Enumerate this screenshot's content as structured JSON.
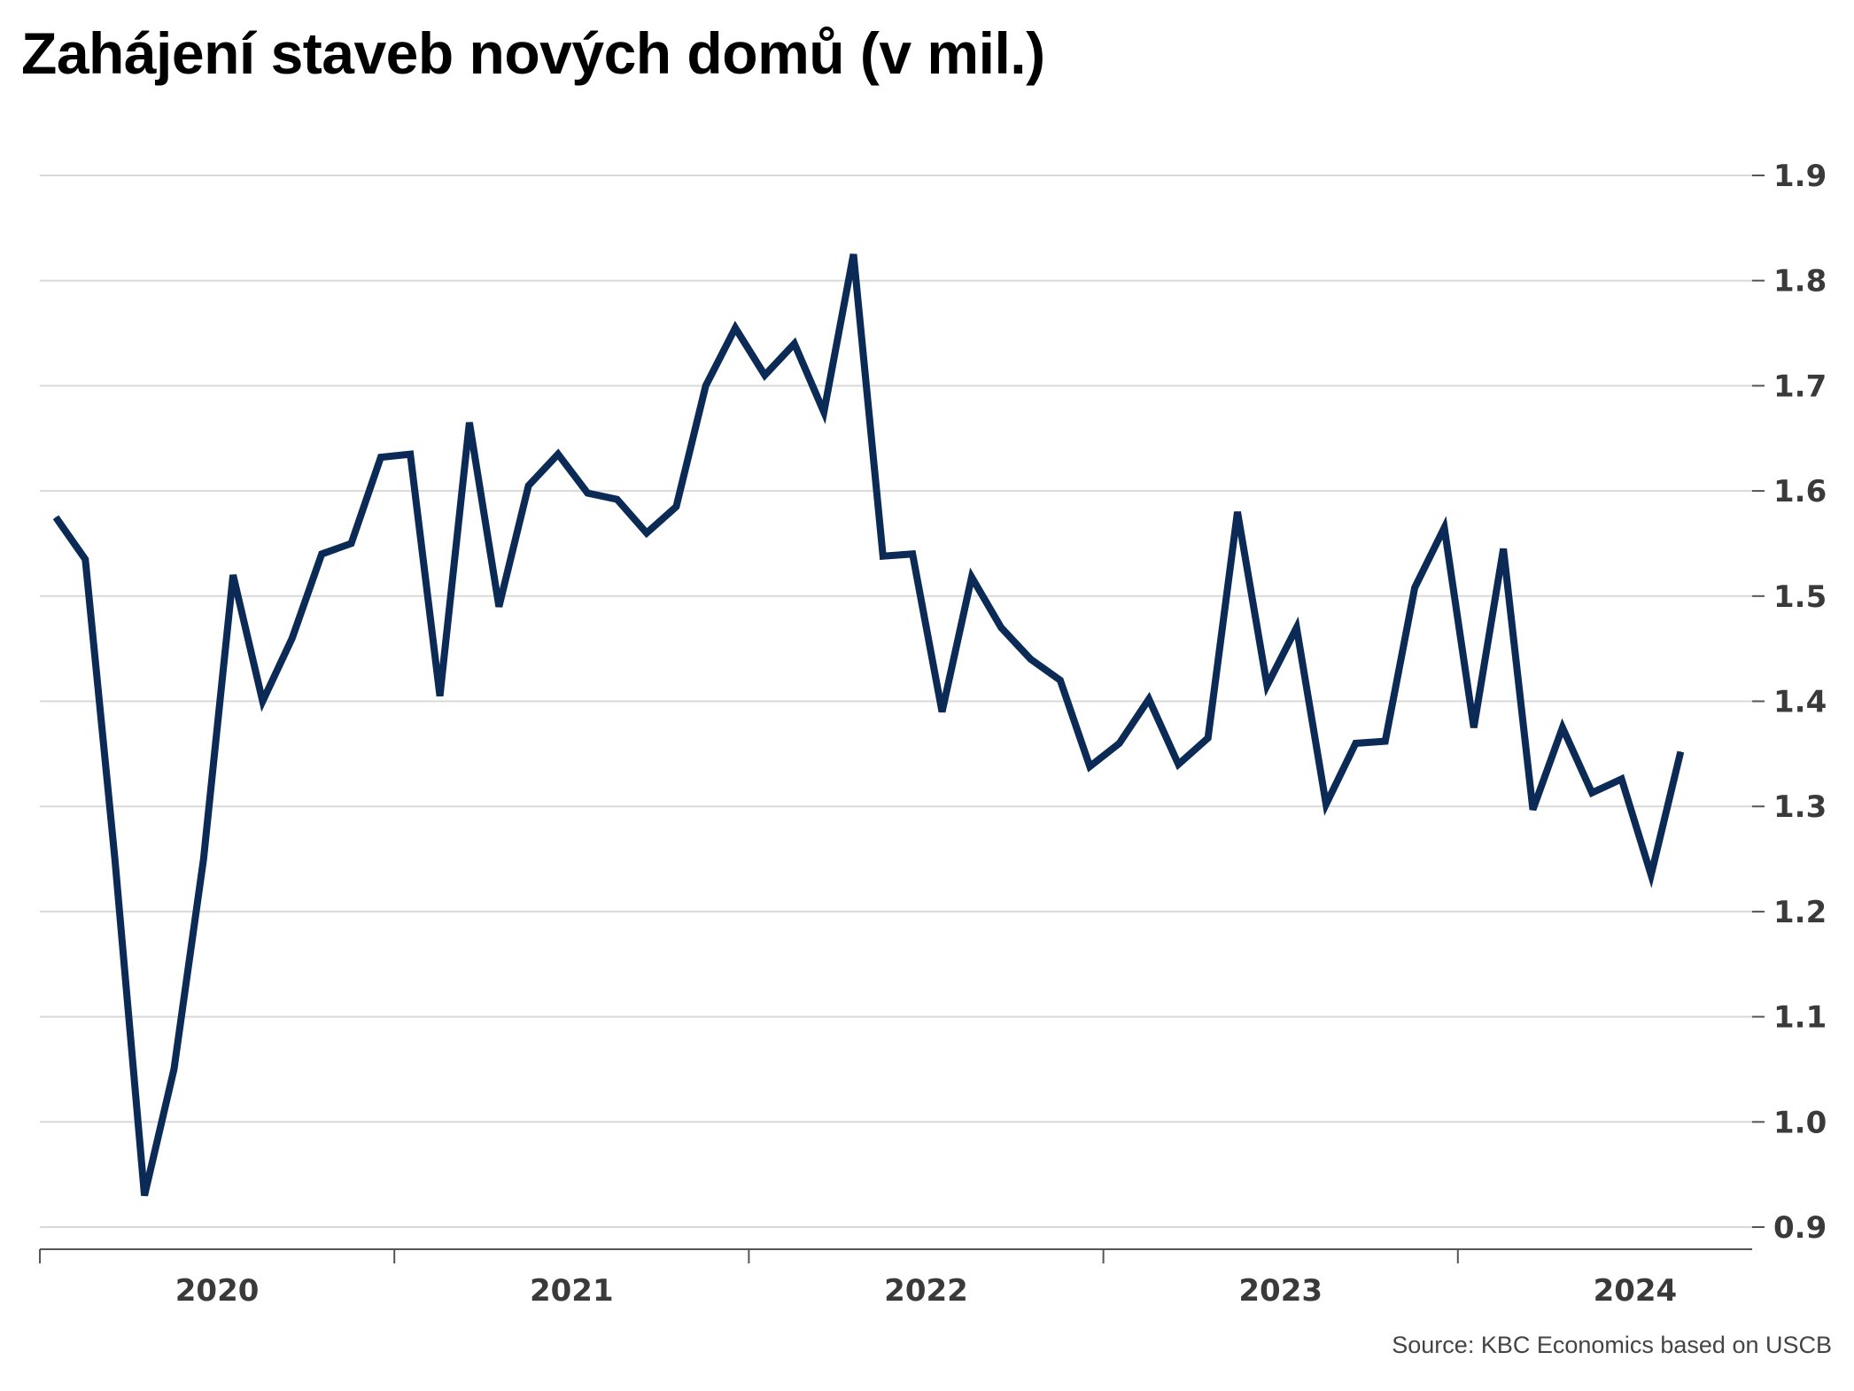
{
  "title": "Zahájení staveb nových domů (v mil.)",
  "source": "Source: KBC Economics based on USCB",
  "colors": {
    "line": "#0b2a55",
    "grid": "#d9d9d9",
    "axis": "#555555",
    "text": "#3a3a3a"
  },
  "chart_data": {
    "type": "line",
    "title": "Zahájení staveb nových domů (v mil.)",
    "ylim": [
      0.9,
      1.9
    ],
    "yticks": [
      "0.9",
      "1.0",
      "1.1",
      "1.2",
      "1.3",
      "1.4",
      "1.5",
      "1.6",
      "1.7",
      "1.8",
      "1.9"
    ],
    "xlabels": [
      "2020",
      "2021",
      "2022",
      "2023",
      "2024"
    ],
    "grid": true,
    "y_axis_position": "right",
    "series": [
      {
        "start": "2020-01",
        "frequency": "monthly",
        "values": [
          1.575,
          1.535,
          1.25,
          0.93,
          1.05,
          1.25,
          1.52,
          1.4,
          1.46,
          1.54,
          1.55,
          1.632,
          1.635,
          1.405,
          1.665,
          1.49,
          1.605,
          1.635,
          1.598,
          1.592,
          1.56,
          1.585,
          1.7,
          1.755,
          1.71,
          1.74,
          1.675,
          1.825,
          1.538,
          1.54,
          1.39,
          1.518,
          1.47,
          1.44,
          1.42,
          1.338,
          1.36,
          1.402,
          1.34,
          1.365,
          1.58,
          1.415,
          1.47,
          1.302,
          1.36,
          1.362,
          1.508,
          1.565,
          1.375,
          1.545,
          1.297,
          1.375,
          1.313,
          1.326,
          1.235,
          1.352
        ]
      }
    ]
  }
}
